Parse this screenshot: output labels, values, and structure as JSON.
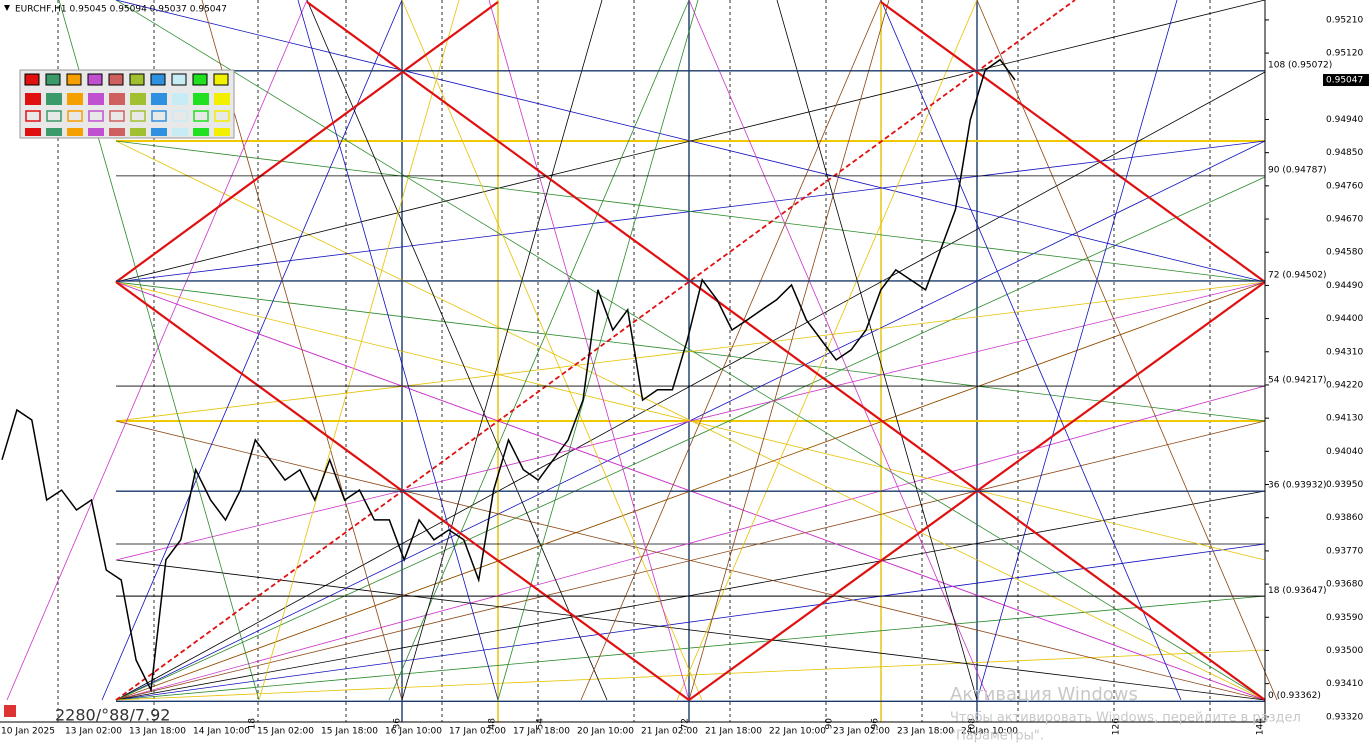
{
  "chart_data": {
    "type": "line",
    "title": "EURCHF,H1  0.95045 0.95094 0.95037 0.95047",
    "color": "#000000",
    "values": [
      0.94017,
      0.94152,
      0.94125,
      0.93908,
      0.93935,
      0.93881,
      0.93908,
      0.93718,
      0.93691,
      0.93474,
      0.93393,
      0.93746,
      0.938,
      0.9399,
      0.93908,
      0.93854,
      0.93935,
      0.94071,
      0.94017,
      0.93962,
      0.9399,
      0.93908,
      0.94017,
      0.93908,
      0.93935,
      0.93854,
      0.93854,
      0.93746,
      0.93854,
      0.938,
      0.93827,
      0.938,
      0.93691,
      0.93935,
      0.94071,
      0.9399,
      0.93962,
      0.94017,
      0.94071,
      0.94179,
      0.94478,
      0.94369,
      0.94424,
      0.94179,
      0.94207,
      0.94207,
      0.94342,
      0.94505,
      0.94451,
      0.94369,
      0.94396,
      0.94424,
      0.94451,
      0.94491,
      0.94396,
      0.94342,
      0.94288,
      0.94315,
      0.94369,
      0.94478,
      0.94532,
      0.94505,
      0.94478,
      0.94586,
      0.94695,
      0.94939,
      0.95074,
      0.95102,
      0.95047
    ],
    "ylim": [
      0.93306,
      0.95264
    ],
    "yticks": [
      {
        "value": 0.9521,
        "label": "0.95210"
      },
      {
        "value": 0.9512,
        "label": "0.95120"
      },
      {
        "value": 0.9494,
        "label": "0.94940"
      },
      {
        "value": 0.9485,
        "label": "0.94850"
      },
      {
        "value": 0.9476,
        "label": "0.94760"
      },
      {
        "value": 0.9467,
        "label": "0.94670"
      },
      {
        "value": 0.9458,
        "label": "0.94580"
      },
      {
        "value": 0.9449,
        "label": "0.94490"
      },
      {
        "value": 0.944,
        "label": "0.94400"
      },
      {
        "value": 0.9431,
        "label": "0.94310"
      },
      {
        "value": 0.9422,
        "label": "0.94220"
      },
      {
        "value": 0.9413,
        "label": "0.94130"
      },
      {
        "value": 0.9404,
        "label": "0.94040"
      },
      {
        "value": 0.9395,
        "label": "0.93950"
      },
      {
        "value": 0.9386,
        "label": "0.93860"
      },
      {
        "value": 0.9377,
        "label": "0.93770"
      },
      {
        "value": 0.9368,
        "label": "0.93680"
      },
      {
        "value": 0.9359,
        "label": "0.93590"
      },
      {
        "value": 0.935,
        "label": "0.93500"
      },
      {
        "value": 0.9341,
        "label": "0.93410"
      },
      {
        "value": 0.9332,
        "label": "0.93320"
      }
    ],
    "current_price": {
      "value": 0.95047,
      "label": "0.95047"
    },
    "levels": [
      {
        "value": 0.95072,
        "label": "108 (0.95072)"
      },
      {
        "value": 0.94787,
        "label": "90 (0.94787)"
      },
      {
        "value": 0.94502,
        "label": "72 (0.94502)"
      },
      {
        "value": 0.94217,
        "label": "54 (0.94217)"
      },
      {
        "value": 0.93932,
        "label": "36 (0.93932)"
      },
      {
        "value": 0.93647,
        "label": "18 (0.93647)"
      },
      {
        "value": 0.93362,
        "label": "0 (0.93362)"
      }
    ],
    "time_labels": [
      "10 Jan 2025",
      "13 Jan 02:00",
      "13 Jan 18:00",
      "14 Jan 10:00",
      "15 Jan 02:00",
      "15 Jan 18:00",
      "16 Jan 10:00",
      "17 Jan 02:00",
      "17 Jan 18:00",
      "20 Jan 10:00",
      "21 Jan 02:00",
      "21 Jan 18:00",
      "22 Jan 10:00",
      "23 Jan 02:00",
      "23 Jan 18:00",
      "24 Jan 10:00"
    ],
    "bar_counts": [
      18,
      36,
      48,
      54,
      72,
      90,
      96,
      108,
      126,
      144
    ],
    "footer": "2280/°88/7.92"
  },
  "watermark": {
    "title": "Активация Windows",
    "line1": "Чтобы активировать Windows, перейдите в раздел",
    "line2": "\"Параметры\"."
  }
}
